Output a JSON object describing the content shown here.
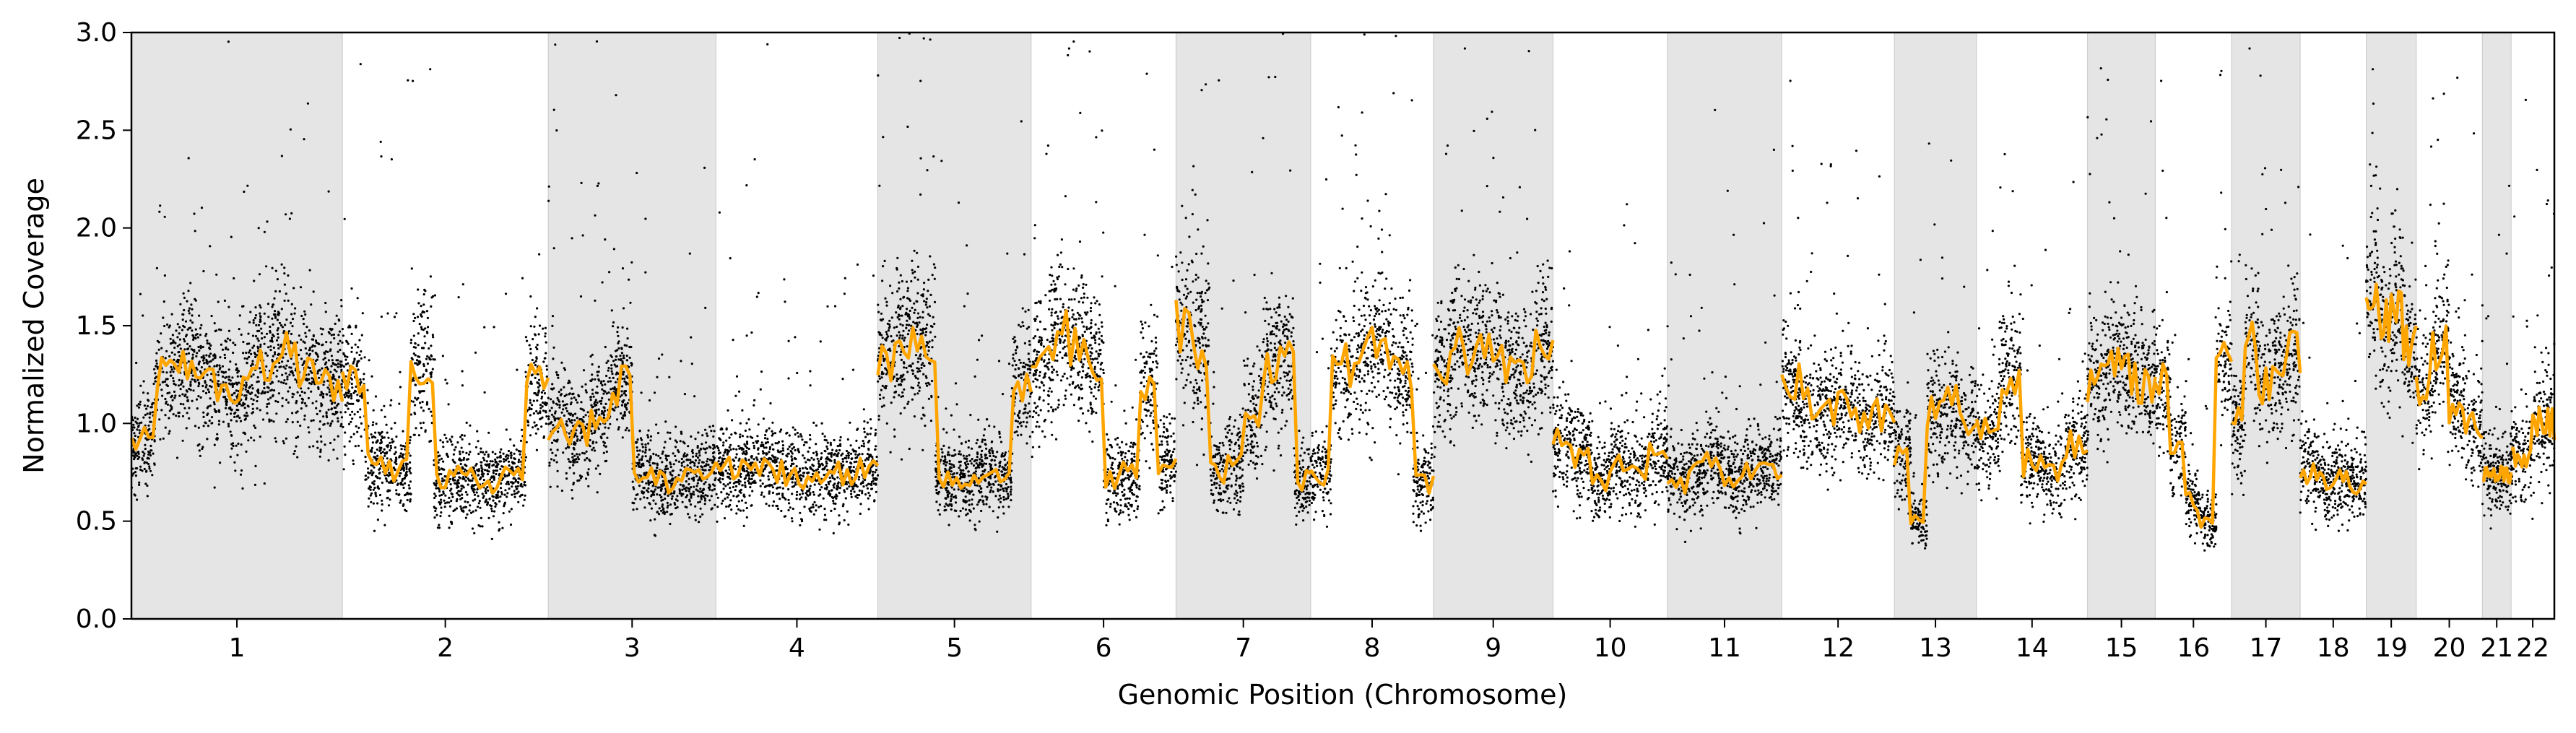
{
  "chart_data": {
    "type": "scatter",
    "title": "",
    "xlabel": "Genomic Position (Chromosome)",
    "ylabel": "Normalized Coverage",
    "ylim": [
      0,
      3.0
    ],
    "yticks": [
      "0.0",
      "0.5",
      "1.0",
      "1.5",
      "2.0",
      "2.5",
      "3.0"
    ],
    "grid": false,
    "legend": "none",
    "colors": {
      "points": "#000000",
      "smoothed_line": "#ffa500",
      "band": "#e5e5e5",
      "axis": "#000000"
    },
    "chromosomes": [
      {
        "label": "1",
        "length": 249,
        "shaded": true
      },
      {
        "label": "2",
        "length": 243,
        "shaded": false
      },
      {
        "label": "3",
        "length": 198,
        "shaded": true
      },
      {
        "label": "4",
        "length": 191,
        "shaded": false
      },
      {
        "label": "5",
        "length": 181,
        "shaded": true
      },
      {
        "label": "6",
        "length": 171,
        "shaded": false
      },
      {
        "label": "7",
        "length": 159,
        "shaded": true
      },
      {
        "label": "8",
        "length": 145,
        "shaded": false
      },
      {
        "label": "9",
        "length": 141,
        "shaded": true
      },
      {
        "label": "10",
        "length": 135,
        "shaded": false
      },
      {
        "label": "11",
        "length": 135,
        "shaded": true
      },
      {
        "label": "12",
        "length": 133,
        "shaded": false
      },
      {
        "label": "13",
        "length": 97,
        "shaded": true
      },
      {
        "label": "14",
        "length": 131,
        "shaded": false
      },
      {
        "label": "15",
        "length": 80,
        "shaded": true
      },
      {
        "label": "16",
        "length": 90,
        "shaded": false
      },
      {
        "label": "17",
        "length": 81,
        "shaded": true
      },
      {
        "label": "18",
        "length": 78,
        "shaded": false
      },
      {
        "label": "19",
        "length": 59,
        "shaded": true
      },
      {
        "label": "20",
        "length": 78,
        "shaded": false
      },
      {
        "label": "21",
        "length": 34,
        "shaded": true
      },
      {
        "label": "22",
        "length": 51,
        "shaded": false
      }
    ],
    "segments": [
      {
        "chrom": "1",
        "values": [
          0.9,
          1.25,
          1.3,
          1.2,
          1.15,
          1.3,
          1.35,
          1.25,
          1.2
        ]
      },
      {
        "chrom": "2",
        "values": [
          1.2,
          0.8,
          0.75,
          1.3,
          0.7,
          0.72,
          0.7,
          0.75,
          1.2
        ]
      },
      {
        "chrom": "3",
        "values": [
          1.0,
          0.95,
          1.05,
          1.2,
          0.75,
          0.7,
          0.72,
          0.75
        ]
      },
      {
        "chrom": "4",
        "values": [
          0.78,
          0.75,
          0.8,
          0.75,
          0.72,
          0.75,
          0.75,
          0.78
        ]
      },
      {
        "chrom": "5",
        "values": [
          1.3,
          1.45,
          1.4,
          0.72,
          0.7,
          0.75,
          0.72,
          1.2
        ]
      },
      {
        "chrom": "6",
        "values": [
          1.3,
          1.45,
          1.4,
          1.3,
          0.72,
          0.75,
          1.2,
          0.8
        ]
      },
      {
        "chrom": "7",
        "values": [
          1.5,
          1.4,
          0.75,
          0.8,
          1.0,
          1.3,
          1.35,
          0.7
        ]
      },
      {
        "chrom": "8",
        "values": [
          0.75,
          1.3,
          1.35,
          1.4,
          1.25,
          0.7
        ]
      },
      {
        "chrom": "9",
        "values": [
          1.3,
          1.4,
          1.35,
          1.35,
          1.3,
          1.25,
          1.4
        ]
      },
      {
        "chrom": "10",
        "values": [
          0.9,
          0.85,
          0.7,
          0.8,
          0.75,
          0.85
        ]
      },
      {
        "chrom": "11",
        "values": [
          0.7,
          0.75,
          0.8,
          0.72,
          0.75,
          0.78
        ]
      },
      {
        "chrom": "12",
        "values": [
          1.2,
          1.1,
          1.05,
          1.1,
          1.0,
          1.05
        ]
      },
      {
        "chrom": "13",
        "values": [
          0.85,
          0.5,
          1.05,
          1.1,
          1.0
        ]
      },
      {
        "chrom": "14",
        "values": [
          0.95,
          1.25,
          0.8,
          0.75,
          0.9
        ]
      },
      {
        "chrom": "15",
        "values": [
          1.2,
          1.3,
          1.25,
          1.2
        ]
      },
      {
        "chrom": "16",
        "values": [
          1.2,
          0.9,
          0.6,
          0.5,
          1.3
        ]
      },
      {
        "chrom": "17",
        "values": [
          1.0,
          1.4,
          1.2,
          1.3,
          1.35
        ]
      },
      {
        "chrom": "18",
        "values": [
          0.75,
          0.7,
          0.72,
          0.7
        ]
      },
      {
        "chrom": "19",
        "values": [
          1.7,
          1.5,
          1.6,
          1.4
        ]
      },
      {
        "chrom": "20",
        "values": [
          1.2,
          1.4,
          1.1,
          1.0
        ]
      },
      {
        "chrom": "21",
        "values": [
          0.75,
          0.72
        ]
      },
      {
        "chrom": "22",
        "values": [
          0.85,
          1.0
        ]
      }
    ],
    "point_count": 16000
  }
}
